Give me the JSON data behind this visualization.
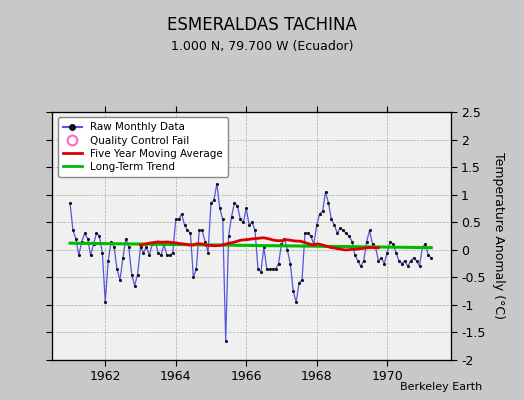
{
  "title": "ESMERALDAS TACHINA",
  "subtitle": "1.000 N, 79.700 W (Ecuador)",
  "ylabel": "Temperature Anomaly (°C)",
  "credit": "Berkeley Earth",
  "ylim": [
    -2.0,
    2.5
  ],
  "xlim": [
    1960.5,
    1971.8
  ],
  "xticks": [
    1962,
    1964,
    1966,
    1968,
    1970
  ],
  "yticks": [
    -2.0,
    -1.5,
    -1.0,
    -0.5,
    0.0,
    0.5,
    1.0,
    1.5,
    2.0,
    2.5
  ],
  "ytick_labels": [
    "-2",
    "-1.5",
    "-1",
    "-0.5",
    "0",
    "0.5",
    "1",
    "1.5",
    "2",
    "2.5"
  ],
  "fig_bg_color": "#c8c8c8",
  "plot_bg_color": "#f0f0f0",
  "raw_color": "#5555dd",
  "dot_color": "#111111",
  "ma_color": "#dd0000",
  "trend_color": "#00bb00",
  "qc_color": "#ff66cc",
  "raw_data": [
    0.85,
    0.35,
    0.2,
    -0.1,
    0.15,
    0.3,
    0.2,
    -0.1,
    0.1,
    0.3,
    0.25,
    -0.05,
    -0.95,
    -0.2,
    0.15,
    0.05,
    -0.35,
    -0.55,
    -0.15,
    0.2,
    0.05,
    -0.45,
    -0.65,
    -0.45,
    0.05,
    -0.05,
    0.05,
    -0.1,
    0.1,
    0.15,
    -0.05,
    -0.1,
    0.1,
    -0.1,
    -0.1,
    -0.05,
    0.55,
    0.55,
    0.65,
    0.45,
    0.35,
    0.3,
    -0.5,
    -0.35,
    0.35,
    0.35,
    0.15,
    -0.05,
    0.85,
    0.9,
    1.2,
    0.75,
    0.55,
    -1.65,
    0.25,
    0.6,
    0.85,
    0.8,
    0.55,
    0.5,
    0.75,
    0.45,
    0.5,
    0.35,
    -0.35,
    -0.4,
    0.05,
    -0.35,
    -0.35,
    -0.35,
    -0.35,
    -0.25,
    0.1,
    0.2,
    0.0,
    -0.25,
    -0.75,
    -0.95,
    -0.6,
    -0.55,
    0.3,
    0.3,
    0.25,
    0.1,
    0.45,
    0.65,
    0.7,
    1.05,
    0.85,
    0.55,
    0.45,
    0.3,
    0.4,
    0.35,
    0.3,
    0.25,
    0.15,
    -0.1,
    -0.2,
    -0.3,
    -0.2,
    0.15,
    0.35,
    0.1,
    0.05,
    -0.2,
    -0.15,
    -0.25,
    -0.05,
    0.15,
    0.1,
    -0.05,
    -0.2,
    -0.25,
    -0.2,
    -0.3,
    -0.2,
    -0.15,
    -0.2,
    -0.3,
    0.05,
    0.1,
    -0.1,
    -0.15
  ],
  "start_year": 1961,
  "start_month": 1,
  "ma_window": 60
}
